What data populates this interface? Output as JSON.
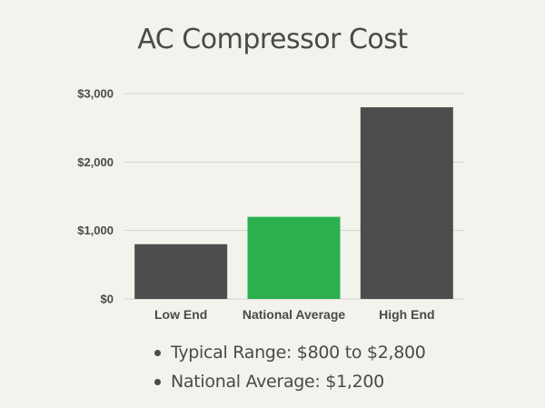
{
  "chart_data": {
    "type": "bar",
    "title": "AC Compressor Cost",
    "categories": [
      "Low End",
      "National Average",
      "High End"
    ],
    "values": [
      800,
      1200,
      2800
    ],
    "ylim": [
      0,
      3000
    ],
    "yticks": [
      0,
      1000,
      2000,
      3000
    ],
    "ytick_labels": [
      "$0",
      "$1,000",
      "$2,000",
      "$3,000"
    ],
    "xlabel": "",
    "ylabel": "",
    "grid": true,
    "bar_colors": [
      "#4d4d4d",
      "#2bb04f",
      "#4d4d4d"
    ],
    "grid_color": "#d2d2cc"
  },
  "summary": {
    "items": [
      "Typical Range: $800 to $2,800",
      "National Average: $1,200"
    ]
  }
}
